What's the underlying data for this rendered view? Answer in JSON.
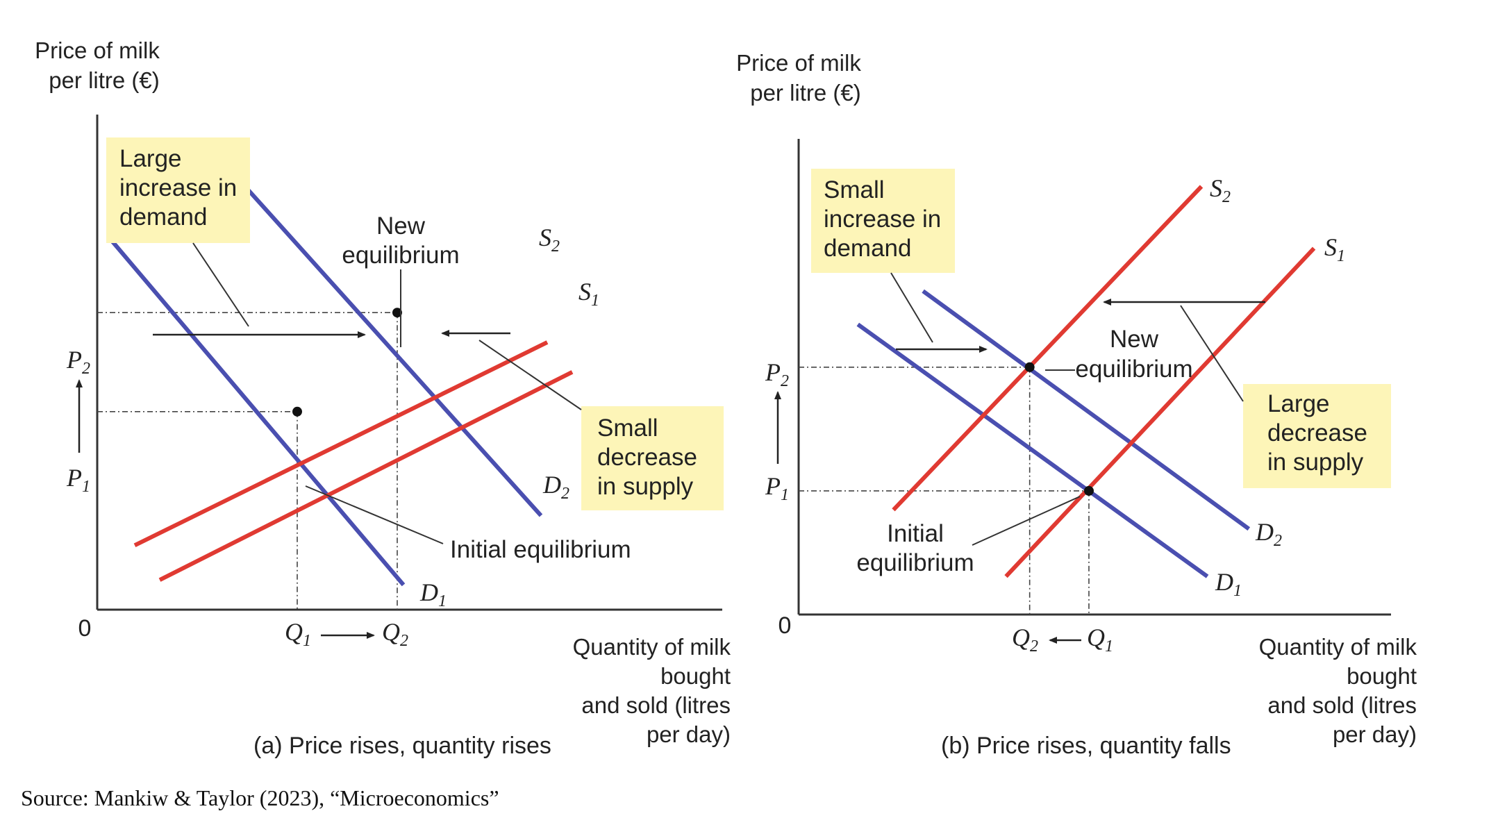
{
  "source": "Source: Mankiw & Taylor (2023), “Microeconomics”",
  "colors": {
    "demand": "#4a4fb0",
    "supply": "#e03a32",
    "note_box": "#fdf5b8",
    "axis": "#333333"
  },
  "chart_data": [
    {
      "type": "line",
      "panel": "a",
      "caption": "(a) Price rises, quantity rises",
      "ylabel_lines": [
        "Price of milk",
        "per litre (€)"
      ],
      "xlabel_lines": [
        "Quantity of milk",
        "bought",
        "and sold (litres",
        "per day)"
      ],
      "origin_label": "0",
      "price_ticks": [
        {
          "name": "P",
          "sub": "1",
          "value": 40
        },
        {
          "name": "P",
          "sub": "2",
          "value": 60
        }
      ],
      "quantity_ticks": [
        {
          "name": "Q",
          "sub": "1",
          "value": 32
        },
        {
          "name": "Q",
          "sub": "2",
          "value": 48
        }
      ],
      "quantity_arrow": "Q1 → Q2",
      "price_arrow": "P1 ↑ P2",
      "xlim": [
        0,
        100
      ],
      "ylim": [
        0,
        100
      ],
      "series": [
        {
          "name": "D",
          "sub": "1",
          "kind": "demand",
          "x": [
            2,
            49
          ],
          "y": [
            75,
            5
          ]
        },
        {
          "name": "D",
          "sub": "2",
          "kind": "demand",
          "x": [
            24,
            71
          ],
          "y": [
            85,
            19
          ]
        },
        {
          "name": "S",
          "sub": "1",
          "kind": "supply",
          "x": [
            10,
            76
          ],
          "y": [
            6,
            48
          ]
        },
        {
          "name": "S",
          "sub": "2",
          "kind": "supply",
          "x": [
            6,
            72
          ],
          "y": [
            13,
            54
          ]
        }
      ],
      "equilibria": [
        {
          "label": "Initial equilibrium",
          "x": 32,
          "y": 40
        },
        {
          "label": "New equilibrium",
          "x": 48,
          "y": 60
        }
      ],
      "annotations": [
        {
          "text_lines": [
            "Large",
            "increase in",
            "demand"
          ]
        },
        {
          "text_lines": [
            "Small",
            "decrease",
            "in supply"
          ]
        }
      ],
      "label_texts": {
        "initial": "Initial equilibrium",
        "new_lines": [
          "New",
          "equilibrium"
        ]
      }
    },
    {
      "type": "line",
      "panel": "b",
      "caption": "(b) Price rises, quantity falls",
      "ylabel_lines": [
        "Price of milk",
        "per litre (€)"
      ],
      "xlabel_lines": [
        "Quantity of milk",
        "bought",
        "and sold (litres",
        "per day)"
      ],
      "origin_label": "0",
      "price_ticks": [
        {
          "name": "P",
          "sub": "1",
          "value": 26
        },
        {
          "name": "P",
          "sub": "2",
          "value": 52
        }
      ],
      "quantity_ticks": [
        {
          "name": "Q",
          "sub": "1",
          "value": 49
        },
        {
          "name": "Q",
          "sub": "2",
          "value": 39
        }
      ],
      "quantity_arrow": "Q2 ← Q1",
      "price_arrow": "P1 ↑ P2",
      "xlim": [
        0,
        100
      ],
      "ylim": [
        0,
        100
      ],
      "series": [
        {
          "name": "D",
          "sub": "1",
          "kind": "demand",
          "x": [
            10,
            69
          ],
          "y": [
            61,
            8
          ]
        },
        {
          "name": "D",
          "sub": "2",
          "kind": "demand",
          "x": [
            21,
            76
          ],
          "y": [
            68,
            18
          ]
        },
        {
          "name": "S",
          "sub": "1",
          "kind": "supply",
          "x": [
            35,
            87
          ],
          "y": [
            8,
            77
          ]
        },
        {
          "name": "S",
          "sub": "2",
          "kind": "supply",
          "x": [
            16,
            68
          ],
          "y": [
            22,
            90
          ]
        }
      ],
      "equilibria": [
        {
          "label": "Initial equilibrium",
          "x": 49,
          "y": 26
        },
        {
          "label": "New equilibrium",
          "x": 39,
          "y": 52
        }
      ],
      "annotations": [
        {
          "text_lines": [
            "Small",
            "increase in",
            "demand"
          ]
        },
        {
          "text_lines": [
            "Large",
            "decrease",
            "in supply"
          ]
        }
      ],
      "label_texts": {
        "initial_lines": [
          "Initial",
          "equilibrium"
        ],
        "new_lines": [
          "New",
          "equilibrium"
        ]
      }
    }
  ]
}
